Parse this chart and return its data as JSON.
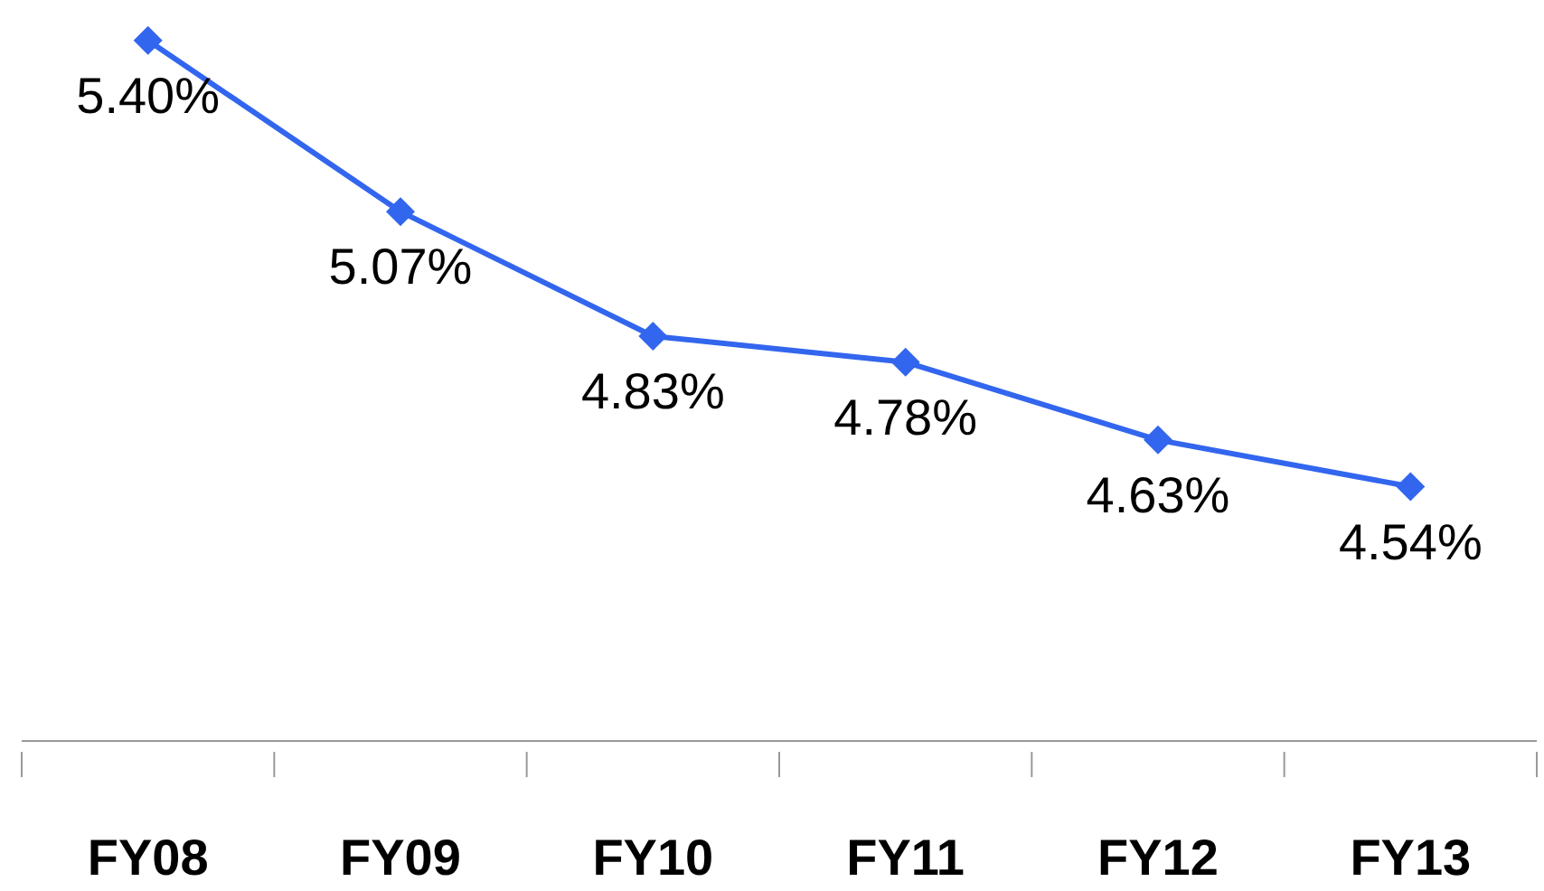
{
  "chart_data": {
    "type": "line",
    "categories": [
      "FY08",
      "FY09",
      "FY10",
      "FY11",
      "FY12",
      "FY13"
    ],
    "series": [
      {
        "color": "#3366ee",
        "values": [
          5.4,
          5.07,
          4.83,
          4.78,
          4.63,
          4.54
        ],
        "value_labels": [
          "5.40%",
          "5.07%",
          "4.83%",
          "4.78%",
          "4.63%",
          "4.54%"
        ]
      }
    ],
    "marker": "diamond",
    "line_style": "solid",
    "tick_labels": "x"
  }
}
